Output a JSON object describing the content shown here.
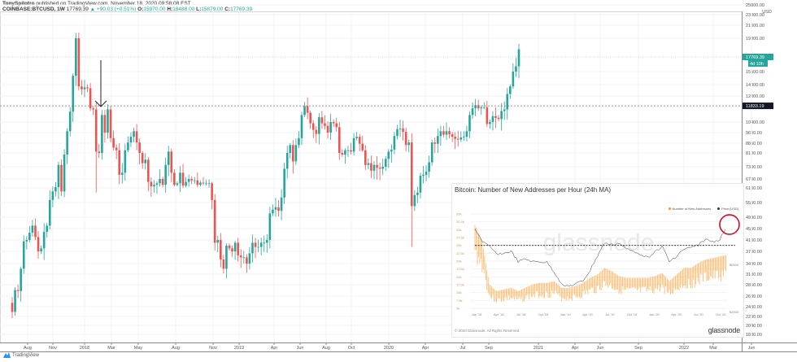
{
  "header": {
    "author": "TonySpilotro",
    "published": "published on TradingView.com, November 18, 2020 09:58:08 EST",
    "symbol": "COINBASE:BTCUSD, 1W",
    "last": "17769.39",
    "change": "▲ +90.03 (+0.51%)",
    "open_label": "O:",
    "open": "15970.00",
    "high_label": "H:",
    "high": "18488.00",
    "low_label": "L:",
    "low": "15879.00",
    "close_label": "C:",
    "close": "17769.39"
  },
  "footer": {
    "brand": "TradingView"
  },
  "colors": {
    "up": "#26a69a",
    "down": "#ef5350",
    "price_line": "#26a69a",
    "glassnode_orange": "#f7931a",
    "circle": "#d0021b"
  },
  "chart_data": [
    {
      "type": "candlestick",
      "interval": "1W",
      "currency": "USD",
      "y_scale": "log",
      "y_ticks": [
        25000,
        23000,
        21000,
        19000,
        15500,
        14000,
        12800,
        10400,
        9600,
        8850,
        8100,
        7300,
        6700,
        6100,
        5500,
        4900,
        4500,
        4100,
        3700,
        3400,
        3100,
        2860,
        2630,
        2430,
        2230,
        2040,
        1880
      ],
      "y_tick_labels": [
        "25000.00",
        "23000.00",
        "21000.00",
        "19000.00",
        "15500.00",
        "14000.00",
        "12800.00",
        "10400.00",
        "9600.00",
        "8850.00",
        "8100.00",
        "7300.00",
        "6700.00",
        "6100.00",
        "5500.00",
        "4900.00",
        "4500.00",
        "4100.00",
        "3700.00",
        "3400.00",
        "3100.00",
        "2860.00",
        "2630.00",
        "2430.00",
        "2230.00",
        "2040.00",
        "1880.00"
      ],
      "x_tick_labels": [
        "Aug",
        "Nov",
        "2018",
        "Mar",
        "May",
        "Aug",
        "Nov",
        "2019",
        "Apr",
        "Jun",
        "Aug",
        "Oct",
        "2020",
        "Apr",
        "Jul",
        "Sep",
        "2021",
        "Apr",
        "Jun",
        "Sep",
        "2022",
        "Mar",
        "Jun"
      ],
      "current_price_label": "17769.39",
      "countdown_label": "4d 10h",
      "horizontal_level": 11833.19,
      "horizontal_level_label": "11833.19",
      "first_open": 2500,
      "weekly_closes": [
        2320,
        2750,
        2730,
        3250,
        4050,
        4100,
        4350,
        4600,
        4200,
        3700,
        3800,
        4380,
        4600,
        5600,
        5950,
        6150,
        7400,
        5950,
        8000,
        9700,
        11300,
        15000,
        19000,
        13800,
        13500,
        13700,
        13600,
        11600,
        11500,
        8200,
        8100,
        11000,
        9600,
        11500,
        9200,
        8500,
        8300,
        6900,
        7000,
        8300,
        8900,
        9300,
        9700,
        8900,
        8100,
        7500,
        7700,
        6500,
        6200,
        6300,
        6400,
        6700,
        6300,
        7400,
        8200,
        7000,
        6300,
        6400,
        7000,
        6250,
        6500,
        6700,
        6600,
        6600,
        6300,
        6450,
        6400,
        6400,
        6400,
        5600,
        4000,
        4100,
        3500,
        3250,
        3900,
        3800,
        3700,
        4000,
        3600,
        3550,
        3550,
        3400,
        3650,
        4000,
        3850,
        3850,
        4000,
        4000,
        4100,
        5050,
        5200,
        5300,
        5150,
        5700,
        7200,
        8100,
        8700,
        7600,
        8700,
        9200,
        11000,
        11800,
        11200,
        10300,
        9800,
        9500,
        10800,
        10300,
        10100,
        9600,
        10400,
        10300,
        10000,
        8100,
        8000,
        8300,
        8300,
        8200,
        9200,
        9300,
        8800,
        8300,
        7400,
        7500,
        7100,
        7400,
        7250,
        7200,
        7300,
        7750,
        8200,
        8350,
        9350,
        9850,
        9900,
        9650,
        8700,
        8900,
        5350,
        5800,
        5900,
        6850,
        6900,
        7050,
        7550,
        8900,
        8800,
        9350,
        9700,
        9450,
        9700,
        9480,
        9300,
        9150,
        9100,
        9250,
        9300,
        9700,
        11000,
        11600,
        11900,
        11600,
        11700,
        11700,
        10250,
        10400,
        10900,
        10750,
        10650,
        11350,
        11500,
        13000,
        13800,
        15500,
        16000,
        17769.39
      ]
    },
    {
      "type": "line",
      "title": "Bitcoin: Number of New Addresses per Hour (24h MA)",
      "legend": [
        "Number of New Addresses",
        "Price [USD]"
      ],
      "legend_placement": "top-right",
      "y_tick_labels": [
        "35k",
        "32.5k",
        "30k",
        "27.5k",
        "25k",
        "22.5k",
        "20k",
        "17.5k",
        "15k",
        "12.5k",
        "10k",
        "7.5k",
        "5k"
      ],
      "y_range": [
        5000,
        35000
      ],
      "x_tick_labels": [
        "Jan '18",
        "Apr '18",
        "Jul '18",
        "Oct '18",
        "Jan '19",
        "Apr '19",
        "Jul '19",
        "Oct '19",
        "Jan '20",
        "Apr '20",
        "Jul '20",
        "Oct '20"
      ],
      "price_labels": [
        "$6500",
        "$2000"
      ],
      "dashed_level": 25000,
      "series": [
        {
          "name": "Number of New Addresses",
          "color": "#f7931a",
          "values": [
            30000,
            25000,
            12000,
            10000,
            10500,
            11000,
            10000,
            11000,
            12000,
            12500,
            12500,
            13000,
            11000,
            11000,
            11500,
            12500,
            14000,
            15000,
            17000,
            16000,
            14500,
            14000,
            14000,
            14000,
            14000,
            14500,
            15500,
            13000,
            15000,
            17000,
            17000,
            18500,
            19500,
            20000,
            20500,
            21000
          ]
        },
        {
          "name": "Price [USD]",
          "color": "#333333",
          "values": [
            15000,
            11000,
            9500,
            8000,
            8000,
            8500,
            6500,
            7000,
            6500,
            6500,
            6400,
            5000,
            3700,
            3500,
            3700,
            4000,
            5200,
            7500,
            10500,
            10000,
            10500,
            9000,
            8500,
            8000,
            7200,
            8500,
            9500,
            6500,
            7500,
            9000,
            9300,
            10000,
            11500,
            10800,
            11500,
            16000
          ]
        }
      ],
      "watermark": "glassnode",
      "copyright": "© 2020 Glassnode. All Rights Reserved.",
      "logo": "glassnode"
    }
  ]
}
